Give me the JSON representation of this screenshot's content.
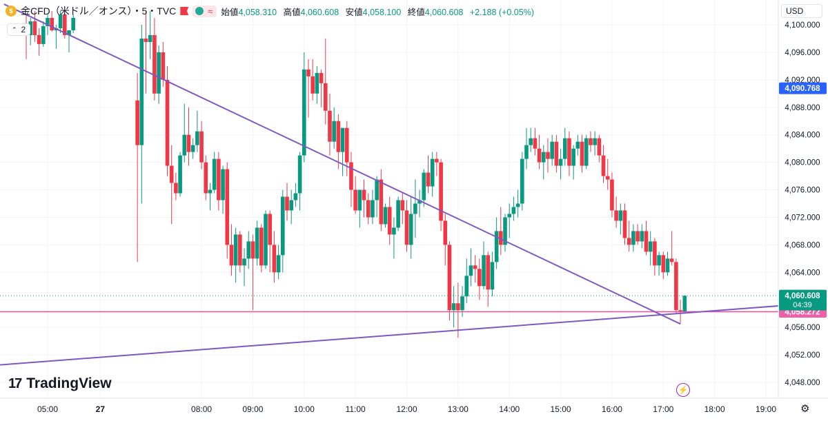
{
  "header": {
    "symbol": "金CFD（米ドル／オンス）・5・TVC",
    "wave_icon": "≈",
    "open_label": "始値",
    "open_value": "4,058.310",
    "high_label": "高値",
    "high_value": "4,060.608",
    "low_label": "安値",
    "low_value": "4,058.100",
    "close_label": "終値",
    "close_value": "4,060.608",
    "change": "+2.188 (+0.05%)"
  },
  "indicator_toggle": "2",
  "currency": "USD",
  "brand": "TradingView",
  "colors": {
    "up": "#089981",
    "down": "#f23645",
    "trendline": "#7e57c2",
    "hline": "#e0589e",
    "hline_badge": "#ed5fa7",
    "mark_badge": "#2962ff",
    "price_badge": "#089981"
  },
  "chart_data": {
    "type": "candlestick",
    "y_axis": {
      "min": 4045,
      "max": 4102,
      "ticks": [
        "4,048.000",
        "4,052.000",
        "4,056.000",
        "4,060.000",
        "4,064.000",
        "4,068.000",
        "4,072.000",
        "4,076.000",
        "4,080.000",
        "4,084.000",
        "4,088.000",
        "4,092.000",
        "4,096.000",
        "4,100.000"
      ]
    },
    "x_axis": {
      "ticks": [
        "05:00",
        "27",
        "08:00",
        "09:00",
        "10:00",
        "11:00",
        "12:00",
        "13:00",
        "14:00",
        "15:00",
        "16:00",
        "17:00",
        "18:00",
        "19:00"
      ]
    },
    "price_labels": {
      "last": "4,060.608",
      "countdown": "04:39",
      "horizontal_line": "4,058.272",
      "marked": "4,090.768"
    },
    "horizontal_line": 4058.272,
    "trendlines": [
      {
        "from": [
          "04:09",
          4103
        ],
        "to": [
          "17:20",
          4056.5
        ]
      },
      {
        "from": [
          "04:00",
          4050.5
        ],
        "to": [
          "19:55",
          4059.5
        ]
      }
    ],
    "ohlc": [
      [
        "04:35",
        4100.2,
        4101.5,
        4095.0,
        4098.5
      ],
      [
        "04:40",
        4098.5,
        4101.0,
        4097.0,
        4100.5
      ],
      [
        "04:45",
        4100.5,
        4102.0,
        4097.5,
        4098.5
      ],
      [
        "04:50",
        4098.5,
        4099.5,
        4095.5,
        4097.2
      ],
      [
        "04:55",
        4097.2,
        4100.5,
        4096.8,
        4099.8
      ],
      [
        "05:00",
        4099.8,
        4101.5,
        4098.5,
        4101.0
      ],
      [
        "05:05",
        4101.0,
        4102.0,
        4099.0,
        4099.2
      ],
      [
        "05:10",
        4099.2,
        4100.0,
        4096.5,
        4099.5
      ],
      [
        "05:15",
        4099.5,
        4102.0,
        4098.8,
        4101.5
      ],
      [
        "05:20",
        4101.5,
        4102.0,
        4098.0,
        4098.5
      ],
      [
        "05:25",
        4098.5,
        4099.0,
        4096.0,
        4099.2
      ],
      [
        "05:30",
        4099.2,
        4101.5,
        4098.8,
        4101.0
      ],
      [
        "06:45",
        4089.0,
        4093.0,
        4065.5,
        4082.5
      ],
      [
        "06:50",
        4082.5,
        4100.0,
        4074.0,
        4098.0
      ],
      [
        "06:55",
        4098.0,
        4102.0,
        4090.0,
        4097.5
      ],
      [
        "07:00",
        4097.5,
        4102.0,
        4095.0,
        4098.5
      ],
      [
        "07:05",
        4098.5,
        4101.0,
        4089.0,
        4090.0
      ],
      [
        "07:10",
        4090.0,
        4097.0,
        4088.5,
        4096.0
      ],
      [
        "07:15",
        4096.0,
        4097.5,
        4091.0,
        4092.0
      ],
      [
        "07:20",
        4092.0,
        4094.0,
        4078.0,
        4079.5
      ],
      [
        "07:25",
        4079.5,
        4082.5,
        4071.0,
        4077.0
      ],
      [
        "07:30",
        4077.0,
        4078.5,
        4074.5,
        4075.5
      ],
      [
        "07:35",
        4075.5,
        4081.5,
        4075.0,
        4081.0
      ],
      [
        "07:40",
        4081.0,
        4088.5,
        4080.0,
        4084.0
      ],
      [
        "07:45",
        4084.0,
        4088.0,
        4079.5,
        4081.5
      ],
      [
        "07:50",
        4081.5,
        4083.5,
        4080.5,
        4082.5
      ],
      [
        "07:55",
        4082.5,
        4087.5,
        4081.5,
        4084.5
      ],
      [
        "08:00",
        4084.5,
        4086.0,
        4079.0,
        4080.0
      ],
      [
        "08:05",
        4080.0,
        4081.0,
        4074.5,
        4075.5
      ],
      [
        "08:10",
        4075.5,
        4077.0,
        4073.0,
        4076.0
      ],
      [
        "08:15",
        4076.0,
        4081.5,
        4075.5,
        4080.5
      ],
      [
        "08:20",
        4080.5,
        4081.5,
        4073.0,
        4074.5
      ],
      [
        "08:25",
        4074.5,
        4079.5,
        4072.5,
        4079.0
      ],
      [
        "08:30",
        4079.0,
        4080.0,
        4066.0,
        4068.0
      ],
      [
        "08:35",
        4068.0,
        4071.0,
        4063.5,
        4065.0
      ],
      [
        "08:40",
        4065.0,
        4070.5,
        4062.5,
        4069.5
      ],
      [
        "08:45",
        4069.5,
        4070.0,
        4064.0,
        4065.0
      ],
      [
        "08:50",
        4065.0,
        4067.5,
        4062.0,
        4066.0
      ],
      [
        "08:55",
        4066.0,
        4070.0,
        4064.5,
        4068.5
      ],
      [
        "09:00",
        4068.5,
        4069.5,
        4058.5,
        4066.0
      ],
      [
        "09:05",
        4066.0,
        4071.5,
        4065.0,
        4070.5
      ],
      [
        "09:10",
        4070.5,
        4071.0,
        4064.0,
        4065.0
      ],
      [
        "09:15",
        4065.0,
        4073.0,
        4064.5,
        4072.5
      ],
      [
        "09:20",
        4072.5,
        4073.0,
        4064.0,
        4068.0
      ],
      [
        "09:25",
        4068.0,
        4070.0,
        4062.5,
        4064.0
      ],
      [
        "09:30",
        4064.0,
        4068.0,
        4063.0,
        4066.5
      ],
      [
        "09:35",
        4066.5,
        4076.0,
        4064.0,
        4075.0
      ],
      [
        "09:40",
        4075.0,
        4077.0,
        4071.5,
        4073.0
      ],
      [
        "09:45",
        4073.0,
        4076.0,
        4071.0,
        4074.5
      ],
      [
        "09:50",
        4074.5,
        4077.0,
        4073.5,
        4075.5
      ],
      [
        "09:55",
        4075.5,
        4081.5,
        4073.0,
        4081.0
      ],
      [
        "10:00",
        4081.0,
        4096.0,
        4080.0,
        4093.5
      ],
      [
        "10:05",
        4093.5,
        4095.0,
        4086.5,
        4092.5
      ],
      [
        "10:10",
        4092.5,
        4095.0,
        4089.0,
        4090.0
      ],
      [
        "10:15",
        4090.0,
        4094.0,
        4088.5,
        4093.0
      ],
      [
        "10:20",
        4093.0,
        4093.5,
        4088.0,
        4091.5
      ],
      [
        "10:25",
        4091.5,
        4098.0,
        4085.5,
        4087.5
      ],
      [
        "10:30",
        4087.5,
        4090.0,
        4081.0,
        4083.0
      ],
      [
        "10:35",
        4083.0,
        4088.0,
        4082.0,
        4086.0
      ],
      [
        "10:40",
        4086.0,
        4087.0,
        4079.0,
        4081.5
      ],
      [
        "10:45",
        4081.5,
        4085.0,
        4078.0,
        4085.0
      ],
      [
        "10:50",
        4085.0,
        4086.0,
        4078.0,
        4080.0
      ],
      [
        "10:55",
        4080.0,
        4081.5,
        4073.5,
        4076.0
      ],
      [
        "11:00",
        4076.0,
        4078.0,
        4072.5,
        4073.0
      ],
      [
        "11:05",
        4073.0,
        4076.0,
        4070.5,
        4076.0
      ],
      [
        "11:10",
        4076.0,
        4077.5,
        4072.0,
        4074.5
      ],
      [
        "11:15",
        4074.5,
        4075.5,
        4071.0,
        4072.0
      ],
      [
        "11:20",
        4072.0,
        4076.0,
        4071.0,
        4074.5
      ],
      [
        "11:25",
        4074.5,
        4078.0,
        4072.0,
        4077.5
      ],
      [
        "11:30",
        4077.5,
        4079.0,
        4070.0,
        4071.0
      ],
      [
        "11:35",
        4071.0,
        4074.0,
        4070.5,
        4073.5
      ],
      [
        "11:40",
        4073.5,
        4075.0,
        4068.0,
        4069.5
      ],
      [
        "11:45",
        4069.5,
        4072.0,
        4066.0,
        4070.5
      ],
      [
        "11:50",
        4070.5,
        4075.0,
        4070.0,
        4074.5
      ],
      [
        "11:55",
        4074.5,
        4075.5,
        4071.0,
        4073.0
      ],
      [
        "12:00",
        4073.0,
        4074.5,
        4067.0,
        4068.0
      ],
      [
        "12:05",
        4068.0,
        4075.0,
        4066.0,
        4072.5
      ],
      [
        "12:10",
        4072.5,
        4077.5,
        4069.0,
        4074.0
      ],
      [
        "12:15",
        4074.0,
        4076.0,
        4072.0,
        4074.5
      ],
      [
        "12:20",
        4074.5,
        4079.0,
        4073.5,
        4078.5
      ],
      [
        "12:25",
        4078.5,
        4081.0,
        4075.5,
        4076.5
      ],
      [
        "12:30",
        4076.5,
        4081.5,
        4075.0,
        4080.5
      ],
      [
        "12:35",
        4080.5,
        4081.5,
        4078.0,
        4080.0
      ],
      [
        "12:40",
        4080.0,
        4080.5,
        4070.0,
        4071.5
      ],
      [
        "12:45",
        4071.5,
        4072.5,
        4065.0,
        4068.0
      ],
      [
        "12:50",
        4068.0,
        4068.5,
        4057.0,
        4058.5
      ],
      [
        "12:55",
        4058.5,
        4062.0,
        4056.0,
        4059.5
      ],
      [
        "13:00",
        4059.5,
        4062.5,
        4054.5,
        4058.5
      ],
      [
        "13:05",
        4058.5,
        4062.0,
        4057.5,
        4060.5
      ],
      [
        "13:10",
        4060.5,
        4066.0,
        4059.5,
        4063.5
      ],
      [
        "13:15",
        4063.5,
        4067.5,
        4062.0,
        4065.0
      ],
      [
        "13:20",
        4065.0,
        4066.5,
        4062.5,
        4064.5
      ],
      [
        "13:25",
        4064.5,
        4066.0,
        4060.0,
        4062.0
      ],
      [
        "13:30",
        4062.0,
        4068.5,
        4061.5,
        4066.5
      ],
      [
        "13:35",
        4066.5,
        4067.0,
        4059.0,
        4061.5
      ],
      [
        "13:40",
        4061.5,
        4067.0,
        4060.5,
        4065.5
      ],
      [
        "13:45",
        4065.5,
        4072.0,
        4064.5,
        4070.0
      ],
      [
        "13:50",
        4070.0,
        4073.5,
        4066.5,
        4068.0
      ],
      [
        "13:55",
        4068.0,
        4072.5,
        4067.0,
        4072.0
      ],
      [
        "14:00",
        4072.0,
        4074.0,
        4069.0,
        4072.5
      ],
      [
        "14:05",
        4072.5,
        4075.0,
        4071.5,
        4073.5
      ],
      [
        "14:10",
        4073.5,
        4076.0,
        4072.0,
        4074.0
      ],
      [
        "14:15",
        4074.0,
        4081.5,
        4073.0,
        4080.5
      ],
      [
        "14:20",
        4080.5,
        4085.0,
        4079.0,
        4082.5
      ],
      [
        "14:25",
        4082.5,
        4085.0,
        4081.5,
        4083.5
      ],
      [
        "14:30",
        4083.5,
        4085.0,
        4081.0,
        4082.0
      ],
      [
        "14:35",
        4082.0,
        4084.0,
        4079.0,
        4080.0
      ],
      [
        "14:40",
        4080.0,
        4082.5,
        4077.5,
        4081.5
      ],
      [
        "14:45",
        4081.5,
        4083.5,
        4078.5,
        4080.5
      ],
      [
        "14:50",
        4080.5,
        4084.0,
        4079.5,
        4083.0
      ],
      [
        "14:55",
        4083.0,
        4084.0,
        4078.5,
        4079.5
      ],
      [
        "15:00",
        4079.5,
        4082.0,
        4077.5,
        4080.5
      ],
      [
        "15:05",
        4080.5,
        4085.0,
        4079.5,
        4083.5
      ],
      [
        "15:10",
        4083.5,
        4084.5,
        4078.0,
        4079.5
      ],
      [
        "15:15",
        4079.5,
        4082.5,
        4077.5,
        4082.0
      ],
      [
        "15:20",
        4082.0,
        4084.0,
        4081.0,
        4083.0
      ],
      [
        "15:25",
        4083.0,
        4084.0,
        4078.5,
        4079.5
      ],
      [
        "15:30",
        4079.5,
        4084.0,
        4079.0,
        4083.5
      ],
      [
        "15:35",
        4083.5,
        4084.5,
        4081.5,
        4082.5
      ],
      [
        "15:40",
        4082.5,
        4084.5,
        4081.0,
        4083.5
      ],
      [
        "15:45",
        4083.5,
        4084.0,
        4080.0,
        4081.0
      ],
      [
        "15:50",
        4081.0,
        4082.5,
        4077.0,
        4078.0
      ],
      [
        "15:55",
        4078.0,
        4080.5,
        4076.0,
        4077.5
      ],
      [
        "16:00",
        4077.5,
        4078.5,
        4072.0,
        4073.0
      ],
      [
        "16:05",
        4073.0,
        4075.0,
        4070.5,
        4071.5
      ],
      [
        "16:10",
        4071.5,
        4074.0,
        4069.5,
        4073.0
      ],
      [
        "16:15",
        4073.0,
        4074.0,
        4068.0,
        4069.0
      ],
      [
        "16:20",
        4069.0,
        4071.5,
        4067.0,
        4068.0
      ],
      [
        "16:25",
        4068.0,
        4071.0,
        4067.0,
        4070.0
      ],
      [
        "16:30",
        4070.0,
        4071.0,
        4068.0,
        4068.5
      ],
      [
        "16:35",
        4068.5,
        4071.0,
        4067.5,
        4070.0
      ],
      [
        "16:40",
        4070.0,
        4071.5,
        4066.5,
        4067.0
      ],
      [
        "16:45",
        4067.0,
        4070.0,
        4065.0,
        4068.5
      ],
      [
        "16:50",
        4068.5,
        4069.0,
        4063.5,
        4065.0
      ],
      [
        "16:55",
        4065.0,
        4067.0,
        4063.5,
        4066.5
      ],
      [
        "17:00",
        4066.5,
        4067.0,
        4063.0,
        4064.0
      ],
      [
        "17:05",
        4064.0,
        4067.0,
        4063.5,
        4066.0
      ],
      [
        "17:10",
        4066.0,
        4070.0,
        4065.0,
        4065.5
      ],
      [
        "17:15",
        4065.5,
        4066.0,
        4058.0,
        4058.5
      ],
      [
        "17:20",
        4058.5,
        4060.0,
        4056.5,
        4058.3
      ],
      [
        "17:25",
        4058.3,
        4060.6,
        4058.1,
        4060.6
      ]
    ]
  }
}
